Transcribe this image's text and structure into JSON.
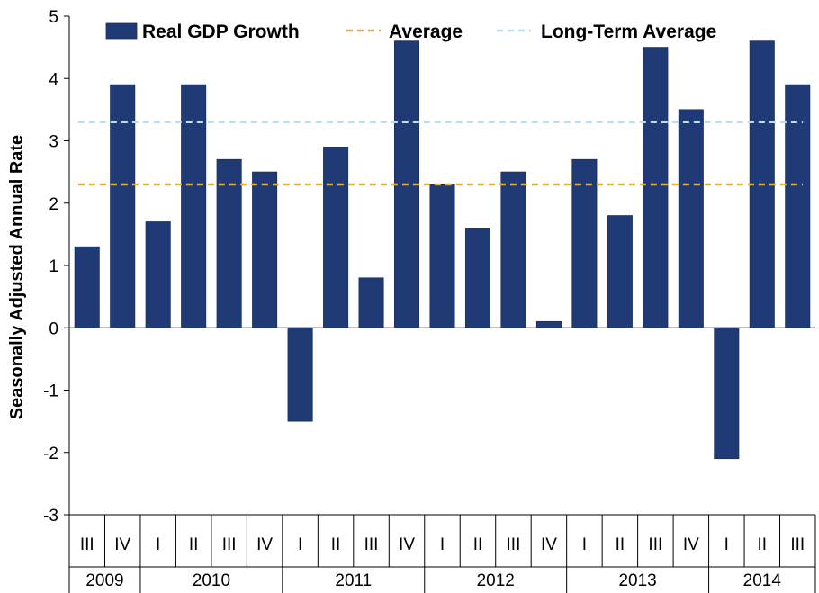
{
  "chart_data": {
    "type": "bar",
    "ylabel": "Seasonally Adjusted Annual Rate",
    "ylim": [
      -3,
      5
    ],
    "yticks": [
      5,
      4,
      3,
      2,
      1,
      0,
      -1,
      -2,
      -3
    ],
    "categories": [
      "III",
      "IV",
      "I",
      "II",
      "III",
      "IV",
      "I",
      "II",
      "III",
      "IV",
      "I",
      "II",
      "III",
      "IV",
      "I",
      "II",
      "III",
      "IV",
      "I",
      "II",
      "III"
    ],
    "years": [
      {
        "label": "2009",
        "count": 2
      },
      {
        "label": "2010",
        "count": 4
      },
      {
        "label": "2011",
        "count": 4
      },
      {
        "label": "2012",
        "count": 4
      },
      {
        "label": "2013",
        "count": 4
      },
      {
        "label": "2014",
        "count": 3
      }
    ],
    "series": [
      {
        "name": "Real GDP Growth",
        "color": "#1f3a75",
        "values": [
          1.3,
          3.9,
          1.7,
          3.9,
          2.7,
          2.5,
          -1.5,
          2.9,
          0.8,
          4.6,
          2.3,
          1.6,
          2.5,
          0.1,
          2.7,
          1.8,
          4.5,
          3.5,
          -2.1,
          4.6,
          3.9
        ]
      }
    ],
    "reference_lines": [
      {
        "name": "Average",
        "value": 2.3,
        "color": "#e8b02a",
        "style": "dashed"
      },
      {
        "name": "Long-Term Average",
        "value": 3.3,
        "color": "#b8dff0",
        "style": "dashed"
      }
    ],
    "legend": [
      {
        "label": "Real GDP Growth",
        "kind": "bar",
        "color": "#1f3a75"
      },
      {
        "label": "Average",
        "kind": "line",
        "color": "#e8b02a"
      },
      {
        "label": "Long-Term Average",
        "kind": "line",
        "color": "#b8dff0"
      }
    ],
    "legend_position": "top",
    "grid": false
  }
}
